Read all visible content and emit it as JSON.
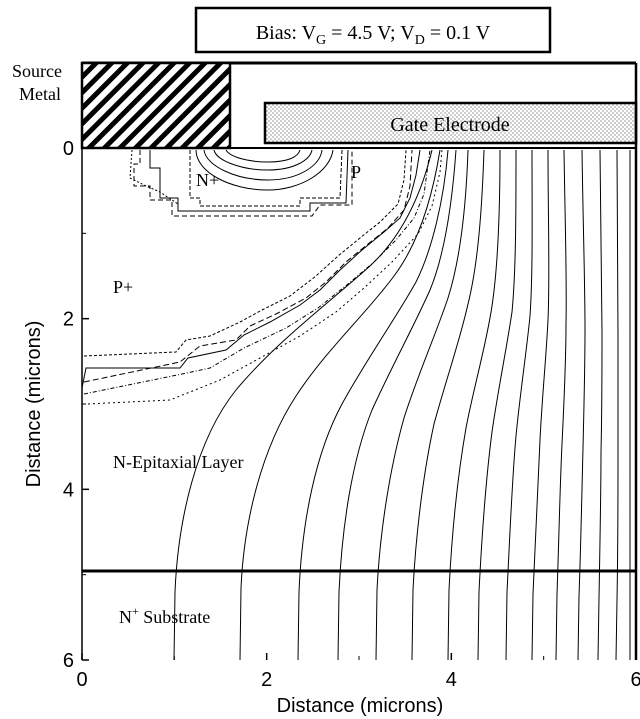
{
  "figure": {
    "bias": {
      "prefix": "Bias: ",
      "vg_sym": "V",
      "vg_sub": "G",
      "vg_val": " = 4.5 V; ",
      "vd_sym": "V",
      "vd_sub": "D",
      "vd_val": " = 0.1 V"
    },
    "source_metal": [
      "Source",
      "Metal"
    ],
    "gate_electrode": "Gate Electrode",
    "regions": {
      "n_plus": "N+",
      "p": "P",
      "p_plus": "P+",
      "n_epi": "N-Epitaxial Layer",
      "n_sub_base": "N",
      "n_sub_sup": "+",
      "n_sub_rest": " Substrate"
    },
    "colors": {
      "ink": "#000000",
      "background": "#ffffff"
    }
  },
  "chart_data": {
    "type": "contour",
    "xlabel": "Distance (microns)",
    "ylabel": "Distance (microns)",
    "xlim": [
      0,
      6
    ],
    "ylim": [
      0,
      6
    ],
    "y_inverted": true,
    "x_ticks": [
      "0",
      "2",
      "4",
      "6"
    ],
    "y_ticks": [
      "0",
      "2",
      "4",
      "6"
    ],
    "epi_substrate_interface_y": 5,
    "gate_span_x": [
      2,
      6
    ],
    "source_metal_span_x": [
      0,
      1.6
    ]
  }
}
